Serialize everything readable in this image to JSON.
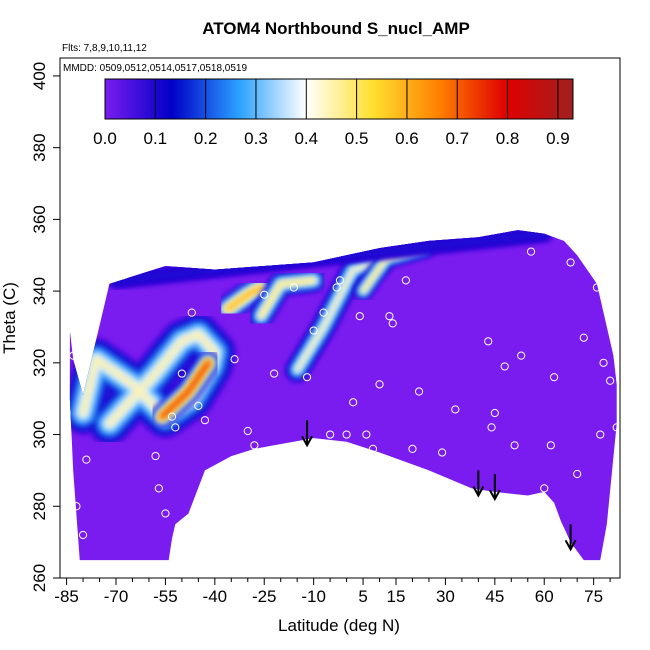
{
  "chart_data": {
    "type": "heatmap",
    "title": "ATOM4 Northbound S_nucl_AMP",
    "annotations": [
      "Flts: 7,8,9,10,11,12",
      "MMDD: 0509,0512,0514,0517,0518,0519"
    ],
    "xlabel": "Latitude (deg N)",
    "ylabel": "Theta (C)",
    "xlim": [
      -87,
      83
    ],
    "ylim": [
      260,
      405
    ],
    "x_ticks": [
      -85,
      -70,
      -55,
      -40,
      -25,
      -10,
      5,
      15,
      30,
      45,
      60,
      75
    ],
    "y_ticks": [
      260,
      280,
      300,
      320,
      340,
      360,
      380,
      400
    ],
    "colorbar": {
      "range": [
        0.0,
        0.93
      ],
      "ticks": [
        0.0,
        0.1,
        0.2,
        0.3,
        0.4,
        0.5,
        0.6,
        0.7,
        0.8,
        0.9
      ],
      "tick_labels": [
        "0.0",
        "0.1",
        "0.2",
        "0.3",
        "0.4",
        "0.5",
        "0.6",
        "0.7",
        "0.8",
        "0.9"
      ],
      "colors": [
        "#7a1cf0",
        "#0000c8",
        "#2aa0ff",
        "#ffffff",
        "#ffe030",
        "#ff8000",
        "#e00000",
        "#a02020"
      ]
    },
    "domain_outline": [
      [
        -84,
        329
      ],
      [
        -83,
        321
      ],
      [
        -80,
        311
      ],
      [
        -72,
        342
      ],
      [
        -55,
        347
      ],
      [
        -40,
        346
      ],
      [
        -25,
        347
      ],
      [
        -10,
        348
      ],
      [
        0,
        350
      ],
      [
        10,
        352
      ],
      [
        25,
        354
      ],
      [
        40,
        355
      ],
      [
        52,
        357
      ],
      [
        60,
        356
      ],
      [
        66,
        354
      ],
      [
        70,
        350
      ],
      [
        76,
        342
      ],
      [
        78,
        334
      ],
      [
        81,
        322
      ],
      [
        82,
        314
      ],
      [
        82,
        303
      ],
      [
        79,
        275
      ],
      [
        77,
        265
      ],
      [
        72,
        265
      ],
      [
        68,
        270
      ],
      [
        65,
        276
      ],
      [
        63,
        281
      ],
      [
        60,
        284
      ],
      [
        55,
        283
      ],
      [
        45,
        284
      ],
      [
        38,
        285
      ],
      [
        25,
        290
      ],
      [
        10,
        295
      ],
      [
        0,
        298
      ],
      [
        -10,
        299
      ],
      [
        -22,
        297
      ],
      [
        -28,
        296
      ],
      [
        -35,
        294
      ],
      [
        -43,
        290
      ],
      [
        -48,
        278
      ],
      [
        -52,
        275
      ],
      [
        -53,
        271
      ],
      [
        -54,
        265
      ],
      [
        -81,
        265
      ],
      [
        -83,
        290
      ],
      [
        -84,
        310
      ]
    ],
    "features": [
      {
        "points": [
          [
            -80,
            306
          ],
          [
            -76,
            321
          ],
          [
            -65,
            314
          ],
          [
            -55,
            305
          ],
          [
            -47,
            310
          ],
          [
            -41,
            319
          ],
          [
            -40,
            323
          ],
          [
            -45,
            328
          ],
          [
            -50,
            326
          ],
          [
            -58,
            317
          ],
          [
            -67,
            308
          ],
          [
            -72,
            303
          ]
        ],
        "value": 0.45,
        "width": 16
      },
      {
        "points": [
          [
            -56,
            305
          ],
          [
            -48,
            312
          ],
          [
            -42,
            320
          ]
        ],
        "value": 0.75,
        "width": 9
      },
      {
        "points": [
          [
            -36,
            335
          ],
          [
            -30,
            339
          ],
          [
            -26,
            341
          ]
        ],
        "value": 0.6,
        "width": 10
      },
      {
        "points": [
          [
            -26,
            333
          ],
          [
            -20,
            342
          ],
          [
            -10,
            343
          ]
        ],
        "value": 0.5,
        "width": 9
      },
      {
        "points": [
          [
            -15,
            318
          ],
          [
            -7,
            330
          ],
          [
            2,
            346
          ],
          [
            10,
            348
          ]
        ],
        "value": 0.45,
        "width": 9
      },
      {
        "points": [
          [
            5,
            340
          ],
          [
            12,
            349
          ],
          [
            24,
            352
          ]
        ],
        "value": 0.5,
        "width": 7
      },
      {
        "points": [
          [
            -70,
            343
          ],
          [
            -40,
            346
          ],
          [
            0,
            350
          ],
          [
            40,
            354
          ],
          [
            60,
            356
          ]
        ],
        "value": 0.1,
        "width": 6
      }
    ],
    "markers": [
      [
        -85,
        329
      ],
      [
        -83,
        322
      ],
      [
        -82,
        280
      ],
      [
        -80,
        272
      ],
      [
        -79,
        293
      ],
      [
        -74,
        343
      ],
      [
        -58,
        294
      ],
      [
        -57,
        285
      ],
      [
        -55,
        278
      ],
      [
        -53,
        305
      ],
      [
        -52,
        302
      ],
      [
        -50,
        317
      ],
      [
        -47,
        334
      ],
      [
        -45,
        308
      ],
      [
        -43,
        304
      ],
      [
        -41,
        289
      ],
      [
        -37,
        289
      ],
      [
        -34,
        321
      ],
      [
        -30,
        301
      ],
      [
        -28,
        297
      ],
      [
        -25,
        339
      ],
      [
        -22,
        317
      ],
      [
        -16,
        341
      ],
      [
        -12,
        316
      ],
      [
        -10,
        329
      ],
      [
        -7,
        334
      ],
      [
        -5,
        300
      ],
      [
        -3,
        341
      ],
      [
        -2,
        343
      ],
      [
        0,
        300
      ],
      [
        2,
        309
      ],
      [
        4,
        333
      ],
      [
        6,
        300
      ],
      [
        8,
        296
      ],
      [
        10,
        314
      ],
      [
        13,
        333
      ],
      [
        14,
        331
      ],
      [
        18,
        343
      ],
      [
        20,
        296
      ],
      [
        22,
        312
      ],
      [
        29,
        295
      ],
      [
        33,
        307
      ],
      [
        43,
        326
      ],
      [
        44,
        302
      ],
      [
        45,
        306
      ],
      [
        48,
        319
      ],
      [
        51,
        297
      ],
      [
        53,
        322
      ],
      [
        56,
        351
      ],
      [
        60,
        285
      ],
      [
        62,
        297
      ],
      [
        63,
        316
      ],
      [
        68,
        348
      ],
      [
        70,
        289
      ],
      [
        72,
        327
      ],
      [
        76,
        341
      ],
      [
        77,
        300
      ],
      [
        78,
        320
      ],
      [
        80,
        315
      ],
      [
        80,
        267
      ],
      [
        81,
        266
      ],
      [
        82,
        302
      ]
    ],
    "arrows": [
      {
        "x": -12,
        "y_from": 304,
        "y_to": 297
      },
      {
        "x": 40,
        "y_from": 290,
        "y_to": 283
      },
      {
        "x": 45,
        "y_from": 289,
        "y_to": 282
      },
      {
        "x": 68,
        "y_from": 275,
        "y_to": 268
      }
    ]
  }
}
